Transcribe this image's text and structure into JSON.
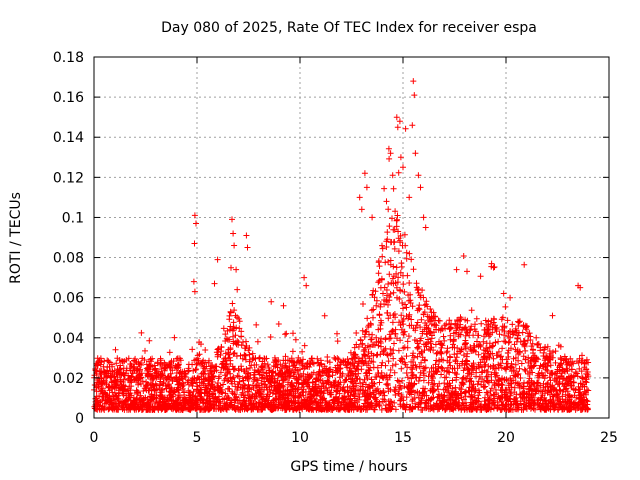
{
  "chart_data": {
    "type": "scatter",
    "title": "Day 080 of 2025, Rate Of TEC Index for receiver espa",
    "xlabel": "GPS time / hours",
    "ylabel": "ROTI / TECUs",
    "xlim": [
      0,
      25
    ],
    "ylim": [
      0,
      0.18
    ],
    "x_ticks": [
      0,
      5,
      10,
      15,
      20,
      25
    ],
    "x_tick_labels": [
      "0",
      "5",
      "10",
      "15",
      "20",
      "25"
    ],
    "y_ticks": [
      0,
      0.02,
      0.04,
      0.06,
      0.08,
      0.1,
      0.12,
      0.14,
      0.16,
      0.18
    ],
    "y_tick_labels": [
      "0",
      "0.02",
      "0.04",
      "0.06",
      "0.08",
      "0.1",
      "0.12",
      "0.14",
      "0.16",
      "0.18"
    ],
    "grid": true,
    "legend": "none",
    "marker": "plus",
    "color": "#ff0000",
    "notable_points": [
      {
        "x": 4.9,
        "y": 0.101
      },
      {
        "x": 4.95,
        "y": 0.097
      },
      {
        "x": 4.88,
        "y": 0.087
      },
      {
        "x": 4.85,
        "y": 0.068
      },
      {
        "x": 4.9,
        "y": 0.063
      },
      {
        "x": 6.0,
        "y": 0.079
      },
      {
        "x": 5.85,
        "y": 0.067
      },
      {
        "x": 6.7,
        "y": 0.099
      },
      {
        "x": 6.75,
        "y": 0.092
      },
      {
        "x": 6.8,
        "y": 0.086
      },
      {
        "x": 6.9,
        "y": 0.074
      },
      {
        "x": 6.95,
        "y": 0.064
      },
      {
        "x": 7.4,
        "y": 0.091
      },
      {
        "x": 7.45,
        "y": 0.085
      },
      {
        "x": 8.6,
        "y": 0.058
      },
      {
        "x": 9.2,
        "y": 0.056
      },
      {
        "x": 10.2,
        "y": 0.07
      },
      {
        "x": 10.3,
        "y": 0.066
      },
      {
        "x": 11.2,
        "y": 0.051
      },
      {
        "x": 12.9,
        "y": 0.11
      },
      {
        "x": 13.0,
        "y": 0.104
      },
      {
        "x": 13.15,
        "y": 0.122
      },
      {
        "x": 13.25,
        "y": 0.115
      },
      {
        "x": 13.5,
        "y": 0.1
      },
      {
        "x": 14.2,
        "y": 0.108
      },
      {
        "x": 14.4,
        "y": 0.132
      },
      {
        "x": 14.5,
        "y": 0.121
      },
      {
        "x": 14.7,
        "y": 0.15
      },
      {
        "x": 14.75,
        "y": 0.145
      },
      {
        "x": 14.85,
        "y": 0.148
      },
      {
        "x": 14.9,
        "y": 0.13
      },
      {
        "x": 15.0,
        "y": 0.125
      },
      {
        "x": 15.5,
        "y": 0.168
      },
      {
        "x": 15.55,
        "y": 0.161
      },
      {
        "x": 15.45,
        "y": 0.146
      },
      {
        "x": 15.3,
        "y": 0.11
      },
      {
        "x": 15.6,
        "y": 0.132
      },
      {
        "x": 15.75,
        "y": 0.121
      },
      {
        "x": 15.85,
        "y": 0.115
      },
      {
        "x": 16.0,
        "y": 0.1
      },
      {
        "x": 16.1,
        "y": 0.095
      },
      {
        "x": 17.6,
        "y": 0.074
      },
      {
        "x": 19.3,
        "y": 0.077
      },
      {
        "x": 19.4,
        "y": 0.075
      },
      {
        "x": 20.2,
        "y": 0.06
      },
      {
        "x": 23.5,
        "y": 0.066
      },
      {
        "x": 23.6,
        "y": 0.065
      }
    ]
  }
}
